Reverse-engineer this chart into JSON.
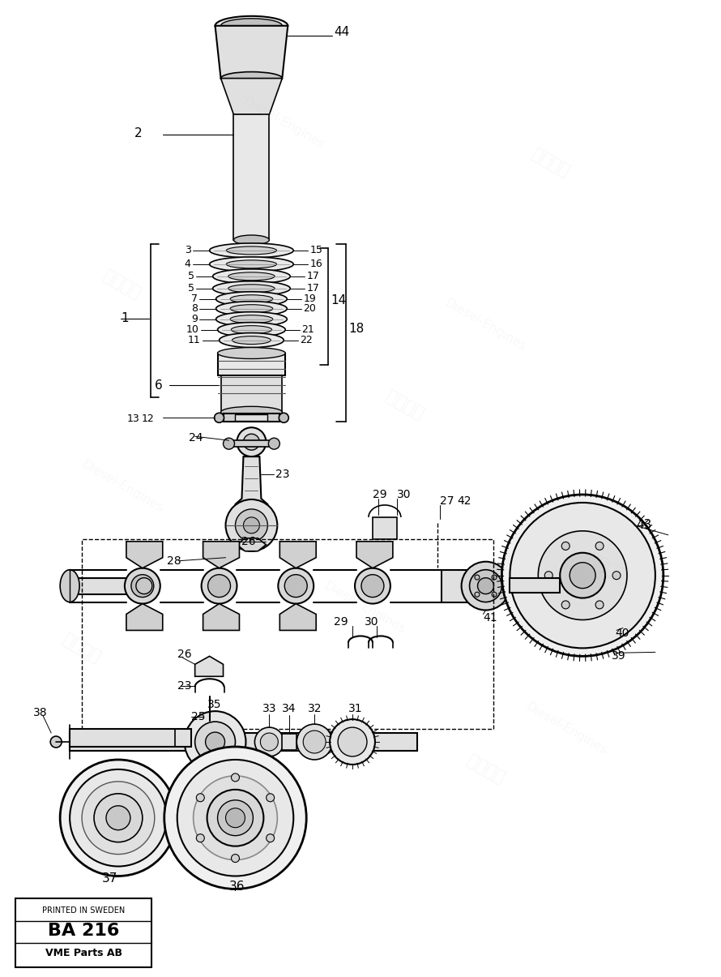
{
  "bg_color": "#ffffff",
  "page_label": "BA 216",
  "company": "VME Parts AB",
  "printed": "PRINTED IN SWEDEN",
  "fig_width": 8.9,
  "fig_height": 12.05,
  "dpi": 100
}
